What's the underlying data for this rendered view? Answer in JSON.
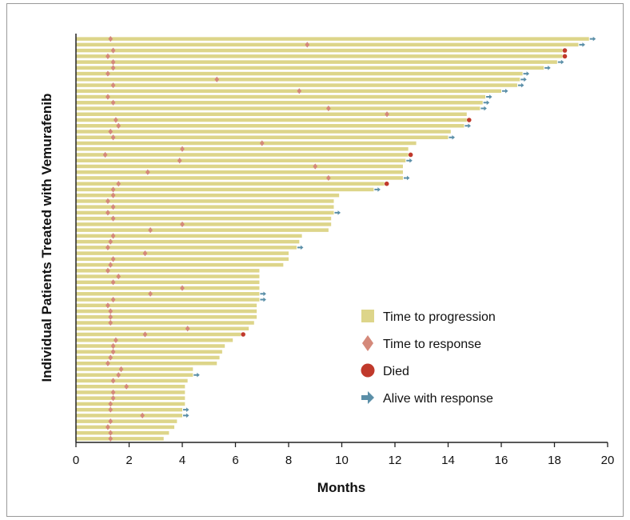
{
  "chart_data": {
    "type": "bar",
    "orientation": "horizontal",
    "xlabel": "Months",
    "ylabel": "Individual Patients Treated with Vemurafenib",
    "xlim": [
      0,
      20
    ],
    "xticks": [
      0,
      2,
      4,
      6,
      8,
      10,
      12,
      14,
      16,
      18,
      20
    ],
    "grid": false,
    "legend_position": "lower-right",
    "colors": {
      "progression": "#ddd58a",
      "response": "#d4897a",
      "died": "#c0392b",
      "alive": "#5b8fa8",
      "axis": "#222222"
    },
    "legend": [
      {
        "key": "progression",
        "label": "Time to progression",
        "marker": "square"
      },
      {
        "key": "response",
        "label": "Time to response",
        "marker": "diamond"
      },
      {
        "key": "died",
        "label": "Died",
        "marker": "circle"
      },
      {
        "key": "alive",
        "label": "Alive with response",
        "marker": "arrow"
      }
    ],
    "patients": [
      {
        "progression": 19.3,
        "response": 1.3,
        "end": "alive"
      },
      {
        "progression": 18.9,
        "response": 8.7,
        "end": "alive"
      },
      {
        "progression": 18.3,
        "response": 1.4,
        "end": "died"
      },
      {
        "progression": 18.3,
        "response": 1.2,
        "end": "died"
      },
      {
        "progression": 18.1,
        "response": 1.4,
        "end": "alive"
      },
      {
        "progression": 17.6,
        "response": 1.4,
        "end": "alive"
      },
      {
        "progression": 16.8,
        "response": 1.2,
        "end": "alive"
      },
      {
        "progression": 16.7,
        "response": 5.3,
        "end": "alive"
      },
      {
        "progression": 16.6,
        "response": 1.4,
        "end": "alive"
      },
      {
        "progression": 16.0,
        "response": 8.4,
        "end": "alive"
      },
      {
        "progression": 15.4,
        "response": 1.2,
        "end": "alive"
      },
      {
        "progression": 15.3,
        "response": 1.4,
        "end": "alive"
      },
      {
        "progression": 15.2,
        "response": 9.5,
        "end": "alive"
      },
      {
        "progression": 14.7,
        "response": 11.7,
        "end": null
      },
      {
        "progression": 14.7,
        "response": 1.5,
        "end": "died"
      },
      {
        "progression": 14.6,
        "response": 1.6,
        "end": "alive"
      },
      {
        "progression": 14.1,
        "response": 1.3,
        "end": null
      },
      {
        "progression": 14.0,
        "response": 1.4,
        "end": "alive"
      },
      {
        "progression": 12.8,
        "response": 7.0,
        "end": null
      },
      {
        "progression": 12.5,
        "response": 4.0,
        "end": null
      },
      {
        "progression": 12.5,
        "response": 1.1,
        "end": "died"
      },
      {
        "progression": 12.4,
        "response": 3.9,
        "end": "alive"
      },
      {
        "progression": 12.3,
        "response": 9.0,
        "end": null
      },
      {
        "progression": 12.3,
        "response": 2.7,
        "end": null
      },
      {
        "progression": 12.3,
        "response": 9.5,
        "end": "alive"
      },
      {
        "progression": 11.6,
        "response": 1.6,
        "end": "died"
      },
      {
        "progression": 11.2,
        "response": 1.4,
        "end": "alive"
      },
      {
        "progression": 9.9,
        "response": 1.4,
        "end": null
      },
      {
        "progression": 9.7,
        "response": 1.2,
        "end": null
      },
      {
        "progression": 9.7,
        "response": 1.4,
        "end": null
      },
      {
        "progression": 9.7,
        "response": 1.2,
        "end": "alive"
      },
      {
        "progression": 9.6,
        "response": 1.4,
        "end": null
      },
      {
        "progression": 9.6,
        "response": 4.0,
        "end": null
      },
      {
        "progression": 9.5,
        "response": 2.8,
        "end": null
      },
      {
        "progression": 8.5,
        "response": 1.4,
        "end": null
      },
      {
        "progression": 8.4,
        "response": 1.3,
        "end": null
      },
      {
        "progression": 8.3,
        "response": 1.2,
        "end": "alive"
      },
      {
        "progression": 8.0,
        "response": 2.6,
        "end": null
      },
      {
        "progression": 8.0,
        "response": 1.4,
        "end": null
      },
      {
        "progression": 7.8,
        "response": 1.3,
        "end": null
      },
      {
        "progression": 6.9,
        "response": 1.2,
        "end": null
      },
      {
        "progression": 6.9,
        "response": 1.6,
        "end": null
      },
      {
        "progression": 6.9,
        "response": 1.4,
        "end": null
      },
      {
        "progression": 6.9,
        "response": 4.0,
        "end": null
      },
      {
        "progression": 6.9,
        "response": 2.8,
        "end": "alive"
      },
      {
        "progression": 6.9,
        "response": 1.4,
        "end": "alive"
      },
      {
        "progression": 6.8,
        "response": 1.2,
        "end": null
      },
      {
        "progression": 6.8,
        "response": 1.3,
        "end": null
      },
      {
        "progression": 6.8,
        "response": 1.3,
        "end": null
      },
      {
        "progression": 6.7,
        "response": 1.3,
        "end": null
      },
      {
        "progression": 6.5,
        "response": 4.2,
        "end": null
      },
      {
        "progression": 6.2,
        "response": 2.6,
        "end": "died"
      },
      {
        "progression": 5.9,
        "response": 1.5,
        "end": null
      },
      {
        "progression": 5.6,
        "response": 1.4,
        "end": null
      },
      {
        "progression": 5.5,
        "response": 1.4,
        "end": null
      },
      {
        "progression": 5.4,
        "response": 1.3,
        "end": null
      },
      {
        "progression": 5.3,
        "response": 1.2,
        "end": null
      },
      {
        "progression": 4.4,
        "response": 1.7,
        "end": null
      },
      {
        "progression": 4.4,
        "response": 1.6,
        "end": "alive"
      },
      {
        "progression": 4.2,
        "response": 1.4,
        "end": null
      },
      {
        "progression": 4.1,
        "response": 1.9,
        "end": null
      },
      {
        "progression": 4.1,
        "response": 1.4,
        "end": null
      },
      {
        "progression": 4.1,
        "response": 1.4,
        "end": null
      },
      {
        "progression": 4.1,
        "response": 1.3,
        "end": null
      },
      {
        "progression": 4.0,
        "response": 1.3,
        "end": "alive"
      },
      {
        "progression": 4.0,
        "response": 2.5,
        "end": "alive"
      },
      {
        "progression": 3.8,
        "response": 1.3,
        "end": null
      },
      {
        "progression": 3.7,
        "response": 1.2,
        "end": null
      },
      {
        "progression": 3.5,
        "response": 1.3,
        "end": null
      },
      {
        "progression": 3.3,
        "response": 1.3,
        "end": null
      }
    ]
  }
}
